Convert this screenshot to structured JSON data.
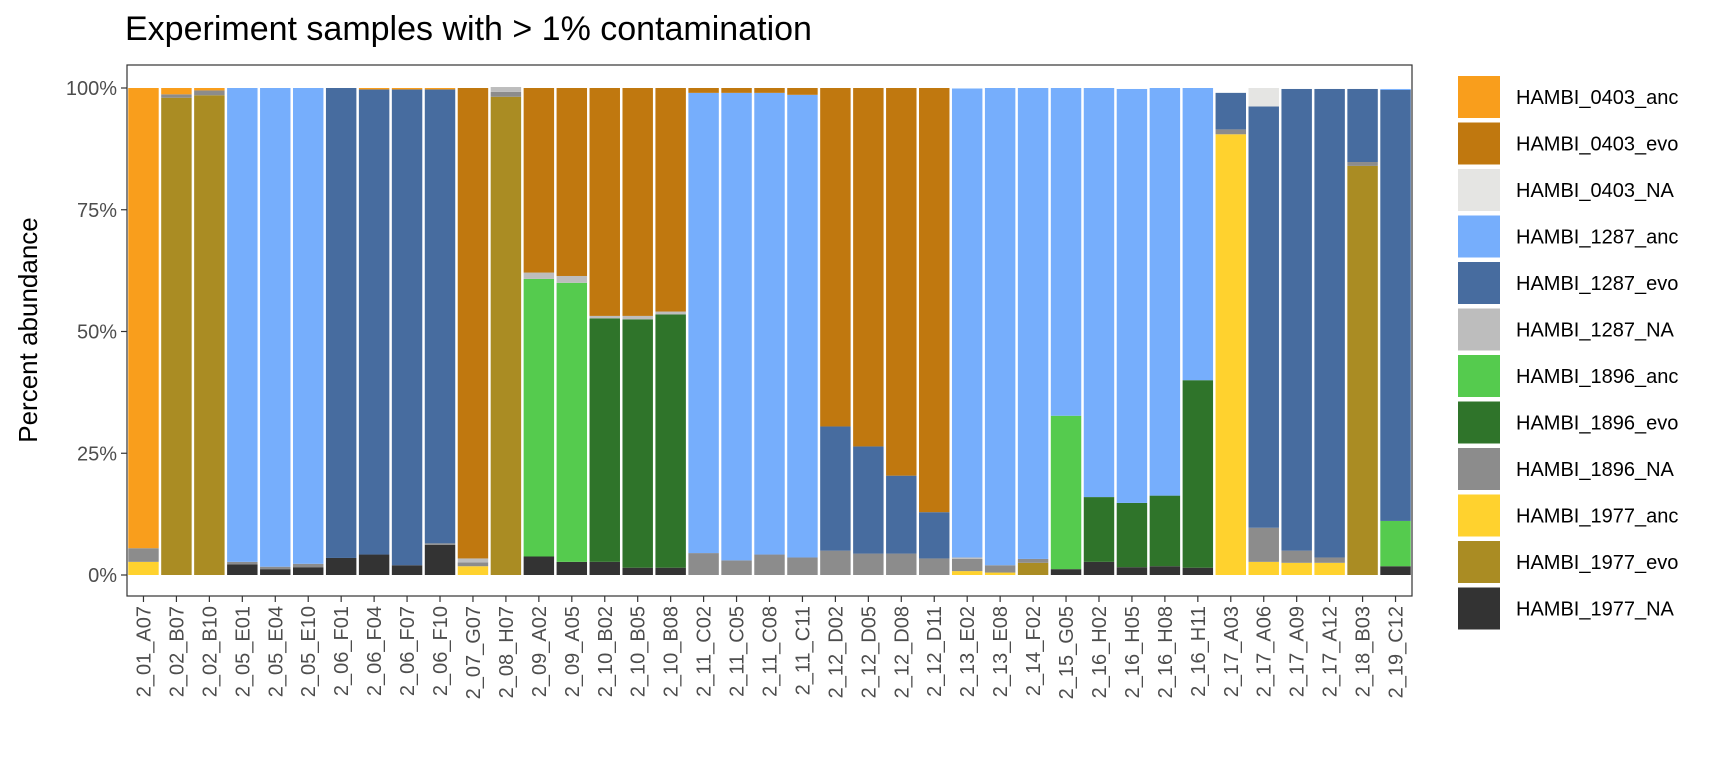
{
  "chart_data": {
    "type": "bar",
    "stacked": true,
    "title": "Experiment samples with > 1% contamination",
    "xlabel": "",
    "ylabel": "Percent abundance",
    "ylim": [
      0,
      100
    ],
    "yticks": [
      "0%",
      "25%",
      "50%",
      "75%",
      "100%"
    ],
    "grid": false,
    "legend_position": "right",
    "categories": [
      "2_01_A07",
      "2_02_B07",
      "2_02_B10",
      "2_05_E01",
      "2_05_E04",
      "2_05_E10",
      "2_06_F01",
      "2_06_F04",
      "2_06_F07",
      "2_06_F10",
      "2_07_G07",
      "2_08_H07",
      "2_09_A02",
      "2_09_A05",
      "2_10_B02",
      "2_10_B05",
      "2_10_B08",
      "2_11_C02",
      "2_11_C05",
      "2_11_C08",
      "2_11_C11",
      "2_12_D02",
      "2_12_D05",
      "2_12_D08",
      "2_12_D11",
      "2_13_E02",
      "2_13_E08",
      "2_14_F02",
      "2_15_G05",
      "2_16_H02",
      "2_16_H05",
      "2_16_H08",
      "2_16_H11",
      "2_17_A03",
      "2_17_A06",
      "2_17_A09",
      "2_17_A12",
      "2_18_B03",
      "2_19_C12"
    ],
    "series": [
      {
        "name": "HAMBI_1977_NA",
        "color": "#333333",
        "values": [
          0,
          0,
          0,
          2.2,
          1.2,
          1.6,
          3.5,
          4.2,
          2.0,
          6.2,
          0,
          0,
          3.8,
          2.7,
          2.7,
          1.5,
          1.5,
          0,
          0,
          0,
          0,
          0,
          0,
          0,
          0,
          0,
          0,
          0,
          1.2,
          2.7,
          1.6,
          1.8,
          1.5,
          0,
          0,
          0,
          0,
          0,
          1.8
        ]
      },
      {
        "name": "HAMBI_1977_evo",
        "color": "#aa8c23",
        "values": [
          0,
          98,
          98.5,
          0,
          0,
          0,
          0,
          0,
          0,
          0,
          0,
          98.2,
          0,
          0,
          0,
          0,
          0,
          0,
          0,
          0,
          0,
          0,
          0,
          0,
          0,
          0,
          0,
          2.5,
          0,
          0,
          0,
          0,
          0,
          0,
          0,
          0,
          0,
          84,
          0
        ]
      },
      {
        "name": "HAMBI_1977_anc",
        "color": "#ffd22e",
        "values": [
          2.7,
          0,
          0,
          0,
          0,
          0,
          0,
          0,
          0,
          0,
          1.8,
          0,
          0,
          0,
          0,
          0,
          0,
          0,
          0,
          0,
          0,
          0,
          0,
          0,
          0,
          0.8,
          0.5,
          0,
          0,
          0,
          0,
          0,
          0,
          90.5,
          2.7,
          2.5,
          2.5,
          0,
          0
        ]
      },
      {
        "name": "HAMBI_1896_NA",
        "color": "#8c8c8c",
        "values": [
          2.8,
          0.7,
          1.0,
          0.5,
          0.5,
          0.7,
          0,
          0,
          0,
          0.3,
          0.8,
          1.0,
          0,
          0,
          0,
          0,
          0,
          4.5,
          3.0,
          4.2,
          3.6,
          5.0,
          4.4,
          4.4,
          3.4,
          2.5,
          1.5,
          0.8,
          0,
          0,
          0,
          0,
          0,
          1.0,
          7.0,
          2.5,
          1.1,
          0.8,
          0
        ]
      },
      {
        "name": "HAMBI_1896_evo",
        "color": "#2f742a",
        "values": [
          0,
          0,
          0,
          0,
          0,
          0,
          0,
          0,
          0,
          0,
          0,
          0,
          0,
          0,
          50,
          51,
          52,
          0,
          0,
          0,
          0,
          0,
          0,
          0,
          0,
          0,
          0,
          0,
          0,
          13.3,
          13.2,
          14.5,
          38.5,
          0,
          0,
          0,
          0,
          0,
          0
        ]
      },
      {
        "name": "HAMBI_1896_anc",
        "color": "#55cb4e",
        "values": [
          0,
          0,
          0,
          0,
          0,
          0,
          0,
          0,
          0,
          0,
          0,
          0,
          57,
          57.3,
          0,
          0,
          0,
          0,
          0,
          0,
          0,
          0,
          0,
          0,
          0,
          0,
          0,
          0,
          31.5,
          0,
          0,
          0,
          0,
          0,
          0,
          0,
          0,
          0,
          9.3
        ]
      },
      {
        "name": "HAMBI_1287_NA",
        "color": "#bdbdbd",
        "values": [
          0,
          0,
          0,
          0,
          0,
          0,
          0,
          0,
          0,
          0,
          0.8,
          1.0,
          1.3,
          1.4,
          0.5,
          0.7,
          0.6,
          0,
          0,
          0,
          0,
          0,
          0,
          0,
          0,
          0.3,
          0,
          0,
          0,
          0,
          0,
          0,
          0,
          0,
          0,
          0,
          0,
          0,
          0
        ]
      },
      {
        "name": "HAMBI_1287_evo",
        "color": "#476c9f",
        "values": [
          0,
          0,
          0,
          0,
          0,
          0,
          96.5,
          95.5,
          97.7,
          93.2,
          0,
          0,
          0,
          0,
          0,
          0,
          0,
          0,
          0,
          0,
          0,
          25.5,
          22,
          16,
          9.5,
          0,
          0,
          0,
          0,
          0,
          0,
          0,
          0,
          7.5,
          86.5,
          94.8,
          96.2,
          15,
          88.5
        ]
      },
      {
        "name": "HAMBI_1287_anc",
        "color": "#76aefc",
        "values": [
          0,
          0,
          0,
          97.3,
          98.3,
          97.7,
          0,
          0,
          0,
          0,
          0,
          0,
          0,
          0,
          0,
          0,
          0,
          94.5,
          96,
          94.8,
          95,
          0,
          0,
          0,
          0,
          96.3,
          98,
          96.7,
          67.3,
          84,
          85,
          83.7,
          60,
          0,
          0,
          0,
          0,
          0,
          0.2
        ]
      },
      {
        "name": "HAMBI_0403_NA",
        "color": "#e5e5e3",
        "values": [
          0,
          0,
          0,
          0,
          0,
          0,
          0,
          0,
          0,
          0,
          0,
          0,
          0,
          0,
          0,
          0,
          0,
          0,
          0,
          0,
          0,
          0,
          0,
          0,
          0,
          0,
          0,
          0,
          0,
          0,
          0,
          0,
          0,
          0,
          3.8,
          0,
          0,
          0,
          0
        ]
      },
      {
        "name": "HAMBI_0403_evo",
        "color": "#c0780f",
        "values": [
          0,
          0,
          0,
          0,
          0,
          0,
          0,
          0,
          0,
          0,
          96.6,
          0,
          37.9,
          38.6,
          46.8,
          46.8,
          45.9,
          1.0,
          1.0,
          1.0,
          1.4,
          69.5,
          73.6,
          79.6,
          87.1,
          0,
          0,
          0,
          0,
          0,
          0,
          0,
          0,
          0,
          0,
          0,
          0,
          0,
          0
        ]
      },
      {
        "name": "HAMBI_0403_anc",
        "color": "#f99e1c",
        "values": [
          94.5,
          1.3,
          0.5,
          0,
          0,
          0,
          0,
          0.3,
          0.3,
          0.3,
          0,
          0,
          0,
          0,
          0,
          0,
          0,
          0,
          0,
          0,
          0,
          0,
          0,
          0,
          0,
          0,
          0,
          0,
          0,
          0,
          0,
          0,
          0,
          0,
          0,
          0,
          0,
          0,
          0
        ]
      }
    ],
    "legend_order": [
      "HAMBI_0403_anc",
      "HAMBI_0403_evo",
      "HAMBI_0403_NA",
      "HAMBI_1287_anc",
      "HAMBI_1287_evo",
      "HAMBI_1287_NA",
      "HAMBI_1896_anc",
      "HAMBI_1896_evo",
      "HAMBI_1896_NA",
      "HAMBI_1977_anc",
      "HAMBI_1977_evo",
      "HAMBI_1977_NA"
    ]
  }
}
